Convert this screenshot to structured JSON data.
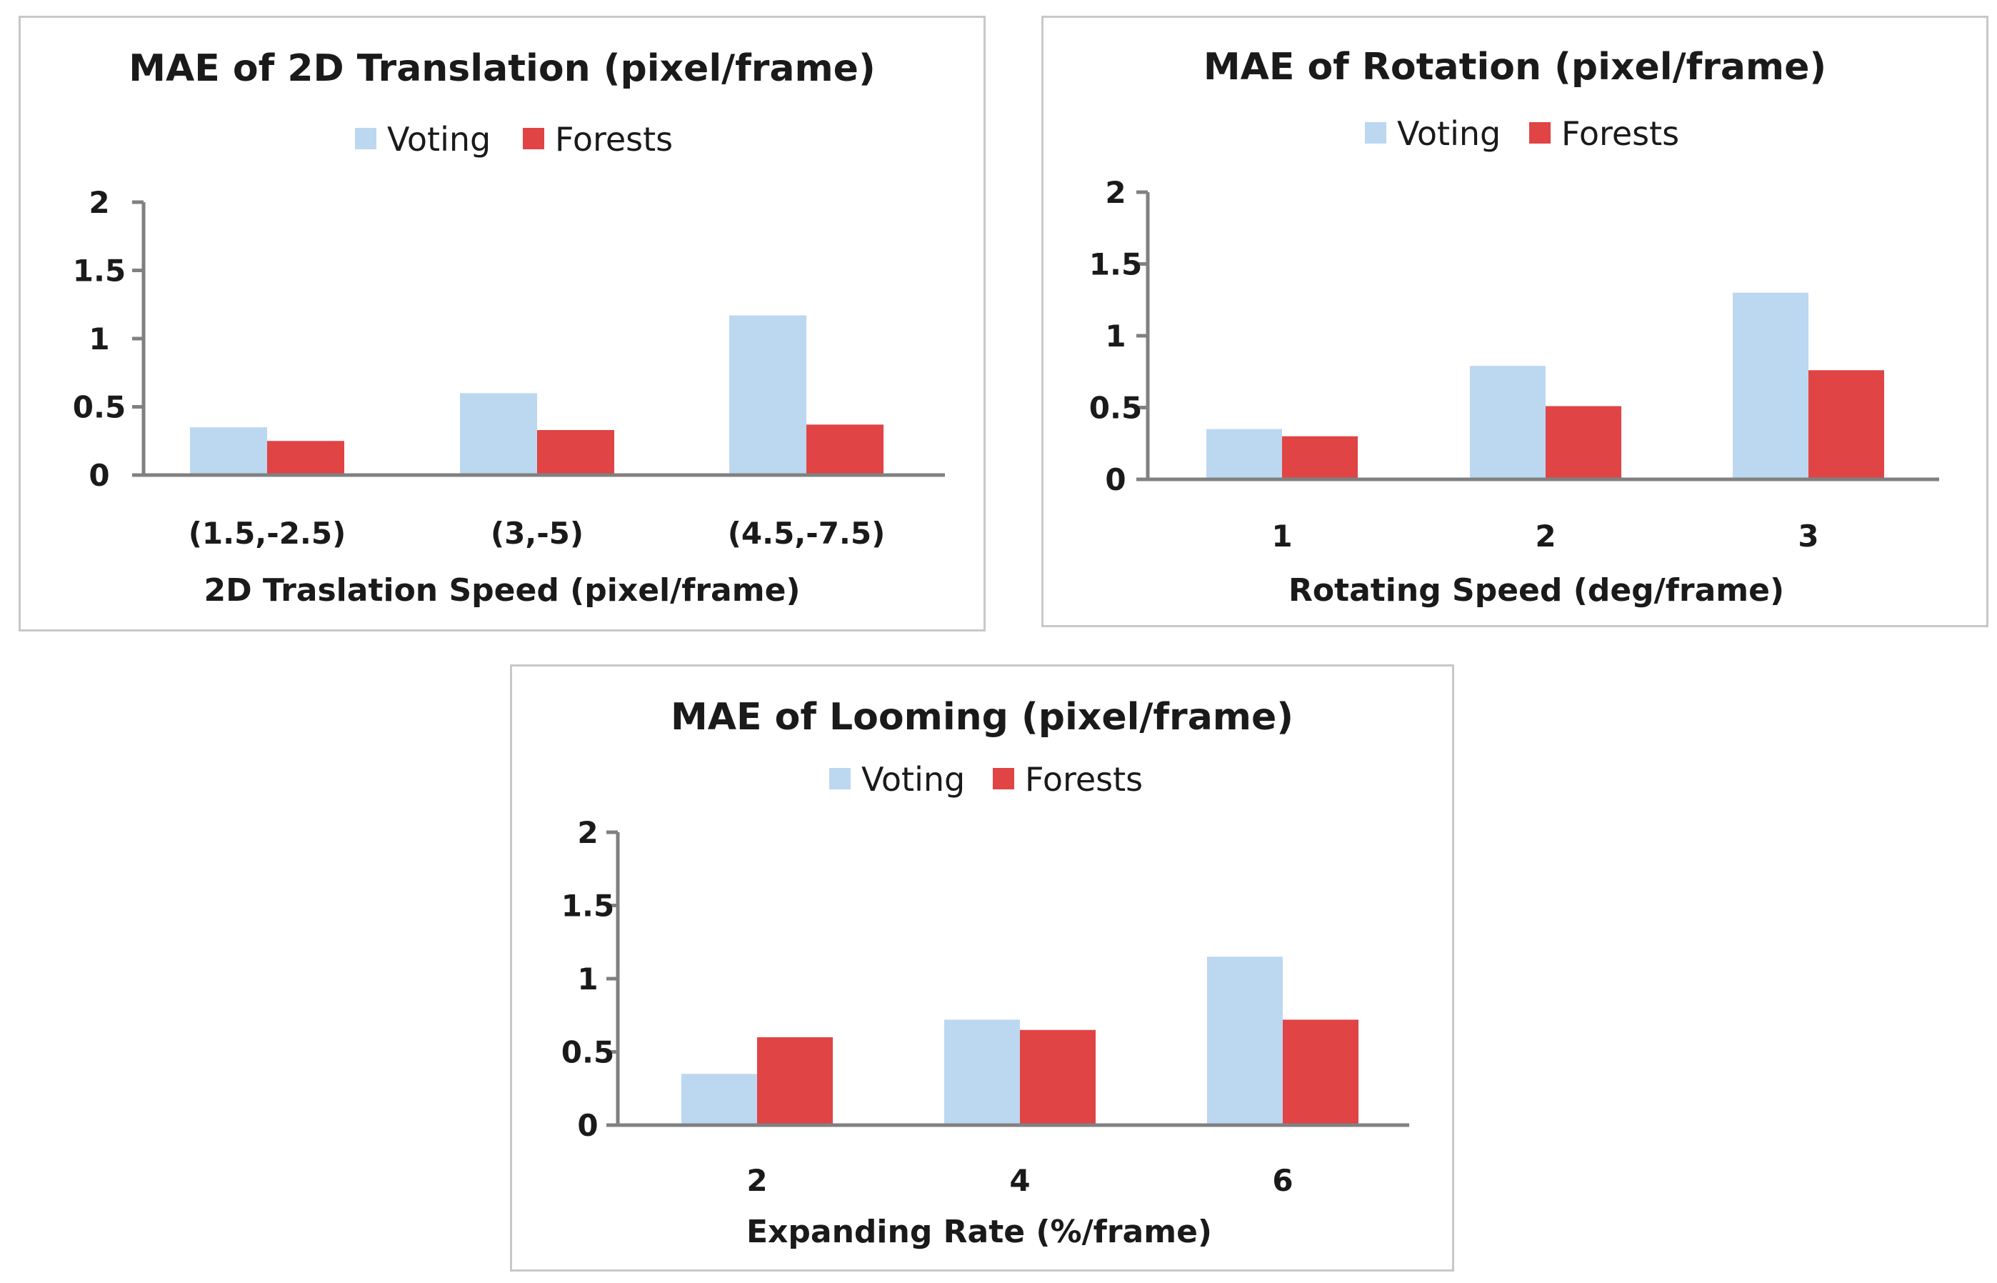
{
  "chart_data": [
    {
      "type": "bar",
      "title": "MAE of 2D Translation (pixel/frame)",
      "xlabel": "2D Traslation Speed (pixel/frame)",
      "ylabel": "",
      "ylim": [
        0,
        2
      ],
      "yticks": [
        0,
        0.5,
        1,
        1.5,
        2
      ],
      "ytick_labels": [
        "0",
        "0.5",
        "1",
        "1.5",
        "2"
      ],
      "categories": [
        "(1.5,-2.5)",
        "(3,-5)",
        "(4.5,-7.5)"
      ],
      "series": [
        {
          "name": "Voting",
          "color": "#bcd7f0",
          "values": [
            0.35,
            0.6,
            1.17
          ]
        },
        {
          "name": "Forests",
          "color": "#e04444",
          "values": [
            0.25,
            0.33,
            0.37
          ]
        }
      ],
      "legend": "top-center",
      "grid": false
    },
    {
      "type": "bar",
      "title": "MAE of Rotation (pixel/frame)",
      "xlabel": "Rotating Speed (deg/frame)",
      "ylabel": "",
      "ylim": [
        0,
        2
      ],
      "yticks": [
        0,
        0.5,
        1,
        1.5,
        2
      ],
      "ytick_labels": [
        "0",
        "0.5",
        "1",
        "1.5",
        "2"
      ],
      "categories": [
        "1",
        "2",
        "3"
      ],
      "series": [
        {
          "name": "Voting",
          "color": "#bcd7f0",
          "values": [
            0.35,
            0.79,
            1.3
          ]
        },
        {
          "name": "Forests",
          "color": "#e04444",
          "values": [
            0.3,
            0.51,
            0.76
          ]
        }
      ],
      "legend": "top-center",
      "grid": false
    },
    {
      "type": "bar",
      "title": "MAE of Looming (pixel/frame)",
      "xlabel": "Expanding Rate (%/frame)",
      "ylabel": "",
      "ylim": [
        0,
        2
      ],
      "yticks": [
        0,
        0.5,
        1,
        1.5,
        2
      ],
      "ytick_labels": [
        "0",
        "0.5",
        "1",
        "1.5",
        "2"
      ],
      "categories": [
        "2",
        "4",
        "6"
      ],
      "series": [
        {
          "name": "Voting",
          "color": "#bcd7f0",
          "values": [
            0.35,
            0.72,
            1.15
          ]
        },
        {
          "name": "Forests",
          "color": "#e04444",
          "values": [
            0.6,
            0.65,
            0.72
          ]
        }
      ],
      "legend": "top-center",
      "grid": false
    }
  ]
}
